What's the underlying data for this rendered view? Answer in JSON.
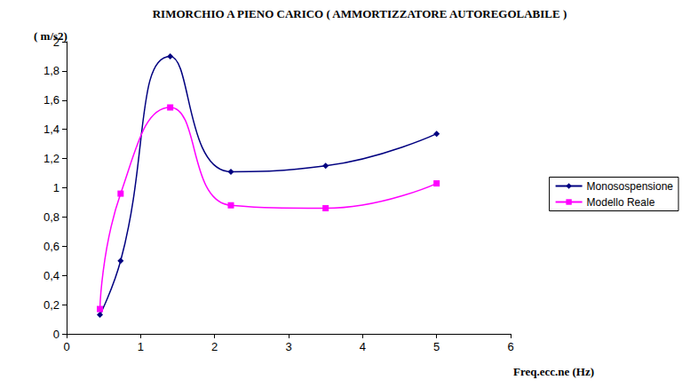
{
  "chart_data": {
    "type": "line",
    "title": "RIMORCHIO A PIENO CARICO ( AMMORTIZZATORE AUTOREGOLABILE )",
    "y_label": "( m/s2)",
    "x_label": "Freq.ecc.ne (Hz)",
    "series": [
      {
        "name": "Monosospensione",
        "color": "#000080",
        "marker": "diamond",
        "line_style": "smooth",
        "x": [
          0.45,
          0.73,
          1.4,
          2.22,
          3.5,
          5.0
        ],
        "values": [
          0.13,
          0.5,
          1.9,
          1.11,
          1.15,
          1.37
        ]
      },
      {
        "name": "Modello Reale",
        "color": "#ff00ff",
        "marker": "square",
        "line_style": "smooth",
        "x": [
          0.45,
          0.73,
          1.4,
          2.22,
          3.5,
          5.0
        ],
        "values": [
          0.17,
          0.96,
          1.55,
          0.88,
          0.86,
          1.03
        ]
      }
    ],
    "xlim": [
      0,
      6
    ],
    "xticks": [
      0,
      1,
      2,
      3,
      4,
      5,
      6
    ],
    "ylim": [
      0,
      2
    ],
    "yticks": [
      0,
      {
        "value": 0.2,
        "label": "0,2"
      },
      {
        "value": 0.4,
        "label": "0,4"
      },
      {
        "value": 0.6,
        "label": "0,6"
      },
      {
        "value": 0.8,
        "label": "0,8"
      },
      1,
      {
        "value": 1.2,
        "label": "1,2"
      },
      {
        "value": 1.4,
        "label": "1,4"
      },
      {
        "value": 1.6,
        "label": "1,6"
      },
      {
        "value": 1.8,
        "label": "1,8"
      },
      2
    ],
    "grid": false,
    "legend": "right"
  }
}
